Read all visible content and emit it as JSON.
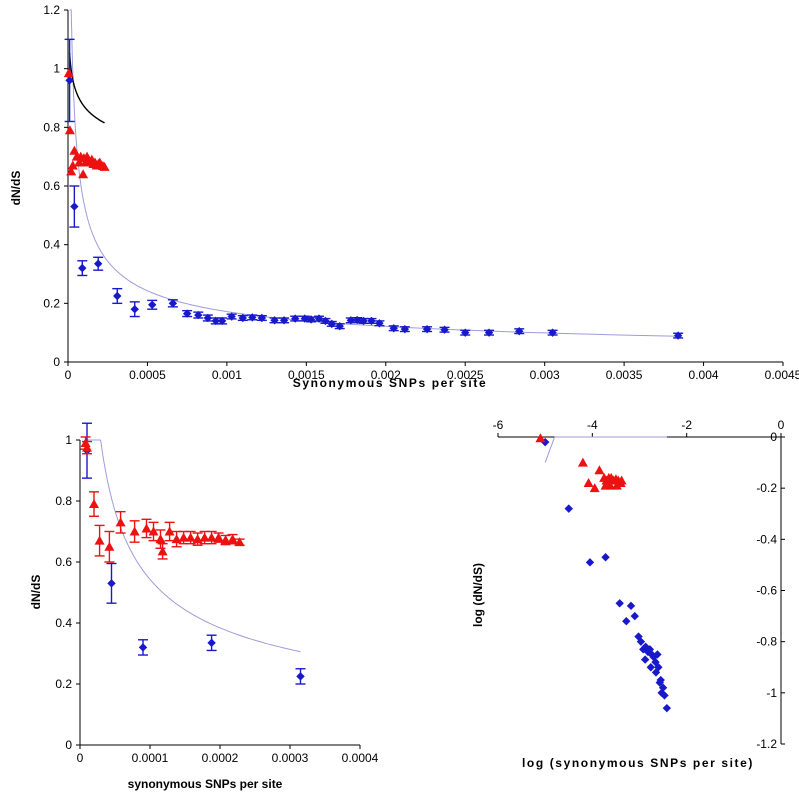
{
  "colors": {
    "blue": "#1919cc",
    "red": "#ee1111",
    "fit_blue": "#9c9cdc",
    "fit_black": "#000000",
    "axis": "#000000"
  },
  "chart_data": [
    {
      "type": "scatter",
      "xlabel": "Synonymous SNPs per site",
      "ylabel": "dN/dS",
      "xlim": [
        0,
        0.0045
      ],
      "ylim": [
        0,
        1.2
      ],
      "xticks": [
        0,
        0.0005,
        0.001,
        0.0015,
        0.002,
        0.0025,
        0.003,
        0.0035,
        0.004,
        0.0045
      ],
      "xtick_labels": [
        "0",
        "0.0005",
        "0.001",
        "0.0015",
        "0.002",
        "0.0025",
        "0.003",
        "0.0035",
        "0.004",
        "0.0045"
      ],
      "yticks": [
        0,
        0.2,
        0.4,
        0.6,
        0.8,
        1,
        1.2
      ],
      "ytick_labels": [
        "0",
        "0.2",
        "0.4",
        "0.6",
        "0.8",
        "1",
        "1.2"
      ],
      "grid": false,
      "series": [
        {
          "marker": "diamond",
          "color": "blue",
          "error_bars": true,
          "points": [
            [
              1e-05,
              0.96,
              0.14
            ],
            [
              4e-05,
              0.53,
              0.07
            ],
            [
              9e-05,
              0.32,
              0.025
            ],
            [
              0.00019,
              0.335,
              0.022
            ],
            [
              0.00031,
              0.225,
              0.025
            ],
            [
              0.00042,
              0.18,
              0.025
            ],
            [
              0.00053,
              0.195,
              0.015
            ],
            [
              0.00066,
              0.2,
              0.012
            ],
            [
              0.00075,
              0.165,
              0.01
            ],
            [
              0.00082,
              0.16,
              0.01
            ],
            [
              0.00088,
              0.15,
              0.01
            ],
            [
              0.00093,
              0.14,
              0.01
            ],
            [
              0.00097,
              0.14,
              0.01
            ],
            [
              0.00103,
              0.155,
              0.008
            ],
            [
              0.0011,
              0.15,
              0.008
            ],
            [
              0.00116,
              0.152,
              0.008
            ],
            [
              0.00122,
              0.15,
              0.008
            ],
            [
              0.0013,
              0.142,
              0.008
            ],
            [
              0.00136,
              0.142,
              0.008
            ],
            [
              0.00143,
              0.148,
              0.008
            ],
            [
              0.00149,
              0.148,
              0.008
            ],
            [
              0.00153,
              0.145,
              0.008
            ],
            [
              0.00158,
              0.148,
              0.008
            ],
            [
              0.00162,
              0.14,
              0.008
            ],
            [
              0.00166,
              0.13,
              0.008
            ],
            [
              0.00171,
              0.122,
              0.008
            ],
            [
              0.00178,
              0.142,
              0.008
            ],
            [
              0.00182,
              0.143,
              0.008
            ],
            [
              0.00186,
              0.14,
              0.008
            ],
            [
              0.00191,
              0.14,
              0.008
            ],
            [
              0.00196,
              0.132,
              0.008
            ],
            [
              0.00205,
              0.115,
              0.008
            ],
            [
              0.00212,
              0.112,
              0.008
            ],
            [
              0.00226,
              0.112,
              0.008
            ],
            [
              0.00237,
              0.11,
              0.008
            ],
            [
              0.0025,
              0.1,
              0.008
            ],
            [
              0.00265,
              0.1,
              0.008
            ],
            [
              0.00284,
              0.105,
              0.008
            ],
            [
              0.00305,
              0.1,
              0.008
            ],
            [
              0.00384,
              0.09,
              0.008
            ]
          ]
        },
        {
          "marker": "triangle",
          "color": "red",
          "error_bars": false,
          "points": [
            [
              5e-06,
              0.985
            ],
            [
              1.2e-05,
              0.79
            ],
            [
              2e-05,
              0.65
            ],
            [
              3e-05,
              0.67
            ],
            [
              4e-05,
              0.72
            ],
            [
              5.5e-05,
              0.7
            ],
            [
              7e-05,
              0.68
            ],
            [
              8e-05,
              0.7
            ],
            [
              0.0001,
              0.695
            ],
            [
              0.00011,
              0.68
            ],
            [
              0.00012,
              0.7
            ],
            [
              0.00013,
              0.685
            ],
            [
              0.00014,
              0.68
            ],
            [
              0.00015,
              0.69
            ],
            [
              0.00016,
              0.675
            ],
            [
              0.00017,
              0.68
            ],
            [
              0.00018,
              0.67
            ],
            [
              0.00019,
              0.675
            ],
            [
              0.0002,
              0.68
            ],
            [
              0.00021,
              0.67
            ],
            [
              0.00022,
              0.668
            ],
            [
              0.00023,
              0.665
            ],
            [
              9.5e-05,
              0.64
            ]
          ]
        }
      ],
      "fit_curves": [
        {
          "color": "fit_blue",
          "form": "power",
          "a": 0.00543,
          "b": -0.5,
          "x_range": [
            1e-05,
            0.00384
          ]
        },
        {
          "color": "fit_black",
          "form": "power",
          "a": 0.41,
          "b": -0.082,
          "x_range": [
            1e-05,
            0.00023
          ]
        }
      ]
    },
    {
      "type": "scatter",
      "xlabel": "synonymous SNPs per site",
      "ylabel": "dN/dS",
      "xlim": [
        0,
        0.0004
      ],
      "ylim": [
        0,
        1
      ],
      "xticks": [
        0,
        0.0001,
        0.0002,
        0.0003,
        0.0004
      ],
      "xtick_labels": [
        "0",
        "0.0001",
        "0.0002",
        "0.0003",
        "0.0004"
      ],
      "yticks": [
        0,
        0.2,
        0.4,
        0.6,
        0.8,
        1
      ],
      "ytick_labels": [
        "0",
        "0.2",
        "0.4",
        "0.6",
        "0.8",
        "1"
      ],
      "grid": false,
      "series": [
        {
          "marker": "diamond",
          "color": "blue",
          "error_bars": true,
          "points": [
            [
              1e-05,
              0.965,
              0.09
            ],
            [
              4.5e-05,
              0.53,
              0.065
            ],
            [
              9e-05,
              0.32,
              0.025
            ],
            [
              0.000188,
              0.335,
              0.025
            ],
            [
              0.000315,
              0.225,
              0.025
            ]
          ]
        },
        {
          "marker": "triangle",
          "color": "red",
          "error_bars": true,
          "points": [
            [
              8e-06,
              0.99,
              0.02
            ],
            [
              1e-05,
              0.975,
              0.02
            ],
            [
              2e-05,
              0.79,
              0.04
            ],
            [
              2.8e-05,
              0.67,
              0.05
            ],
            [
              4.2e-05,
              0.65,
              0.05
            ],
            [
              5.8e-05,
              0.73,
              0.035
            ],
            [
              7.8e-05,
              0.7,
              0.035
            ],
            [
              9.5e-05,
              0.71,
              0.03
            ],
            [
              0.000105,
              0.7,
              0.03
            ],
            [
              0.000115,
              0.675,
              0.03
            ],
            [
              0.000118,
              0.635,
              0.025
            ],
            [
              0.000128,
              0.7,
              0.03
            ],
            [
              0.000138,
              0.675,
              0.025
            ],
            [
              0.000148,
              0.68,
              0.02
            ],
            [
              0.000158,
              0.68,
              0.02
            ],
            [
              0.000168,
              0.675,
              0.02
            ],
            [
              0.000178,
              0.68,
              0.02
            ],
            [
              0.000188,
              0.68,
              0.02
            ],
            [
              0.000198,
              0.68,
              0.015
            ],
            [
              0.000208,
              0.672,
              0.015
            ],
            [
              0.000218,
              0.675,
              0.015
            ],
            [
              0.000228,
              0.665,
              0.01
            ]
          ]
        }
      ],
      "fit_curves": [
        {
          "color": "fit_blue",
          "form": "power",
          "a": 0.00543,
          "b": -0.5,
          "x_range": [
            1e-05,
            0.000315
          ]
        }
      ]
    },
    {
      "type": "scatter",
      "xlabel": "log (synonymous SNPs per site)",
      "ylabel": "log (dN/dS)",
      "xlim": [
        -6,
        0
      ],
      "ylim": [
        -1.2,
        0
      ],
      "xticks": [
        -6,
        -4,
        -2,
        0
      ],
      "xtick_labels": [
        "-6",
        "-4",
        "-2",
        "0"
      ],
      "yticks": [
        0,
        -0.2,
        -0.4,
        -0.6,
        -0.8,
        -1,
        -1.2
      ],
      "ytick_labels": [
        "0",
        "-0.2",
        "-0.4",
        "-0.6",
        "-0.8",
        "-1",
        "-1.2"
      ],
      "grid": false,
      "series": [
        {
          "marker": "diamond",
          "color": "blue",
          "error_bars": false,
          "points": [
            [
              -5.0,
              -0.02
            ],
            [
              -4.5,
              -0.28
            ],
            [
              -4.05,
              -0.49
            ],
            [
              -3.72,
              -0.47
            ],
            [
              -3.42,
              -0.65
            ],
            [
              -3.28,
              -0.72
            ],
            [
              -3.18,
              -0.66
            ],
            [
              -3.1,
              -0.7
            ],
            [
              -3.02,
              -0.78
            ],
            [
              -2.97,
              -0.8
            ],
            [
              -2.92,
              -0.83
            ],
            [
              -2.87,
              -0.82
            ],
            [
              -2.82,
              -0.84
            ],
            [
              -2.78,
              -0.83
            ],
            [
              -2.74,
              -0.85
            ],
            [
              -2.7,
              -0.86
            ],
            [
              -2.66,
              -0.88
            ],
            [
              -2.62,
              -0.85
            ],
            [
              -2.6,
              -0.9
            ],
            [
              -2.57,
              -0.96
            ],
            [
              -2.55,
              -0.95
            ],
            [
              -2.53,
              -1.0
            ],
            [
              -2.5,
              -0.98
            ],
            [
              -2.47,
              -1.01
            ],
            [
              -2.42,
              -1.06
            ],
            [
              -2.88,
              -0.87
            ],
            [
              -2.76,
              -0.9
            ],
            [
              -2.65,
              -0.92
            ]
          ]
        },
        {
          "marker": "triangle",
          "color": "red",
          "error_bars": false,
          "points": [
            [
              -5.1,
              -0.005
            ],
            [
              -4.2,
              -0.1
            ],
            [
              -4.08,
              -0.18
            ],
            [
              -3.95,
              -0.2
            ],
            [
              -3.85,
              -0.13
            ],
            [
              -3.75,
              -0.16
            ],
            [
              -3.7,
              -0.17
            ],
            [
              -3.65,
              -0.16
            ],
            [
              -3.6,
              -0.16
            ],
            [
              -3.55,
              -0.17
            ],
            [
              -3.5,
              -0.165
            ],
            [
              -3.45,
              -0.17
            ],
            [
              -3.4,
              -0.18
            ],
            [
              -3.38,
              -0.17
            ],
            [
              -3.62,
              -0.19
            ],
            [
              -3.48,
              -0.19
            ],
            [
              -3.72,
              -0.19
            ]
          ]
        }
      ],
      "fit_curves": [
        {
          "color": "fit_blue",
          "form": "linear",
          "slope": 0.5,
          "intercept": 2.4,
          "x_range": [
            -5.0,
            -2.42
          ]
        }
      ]
    }
  ]
}
